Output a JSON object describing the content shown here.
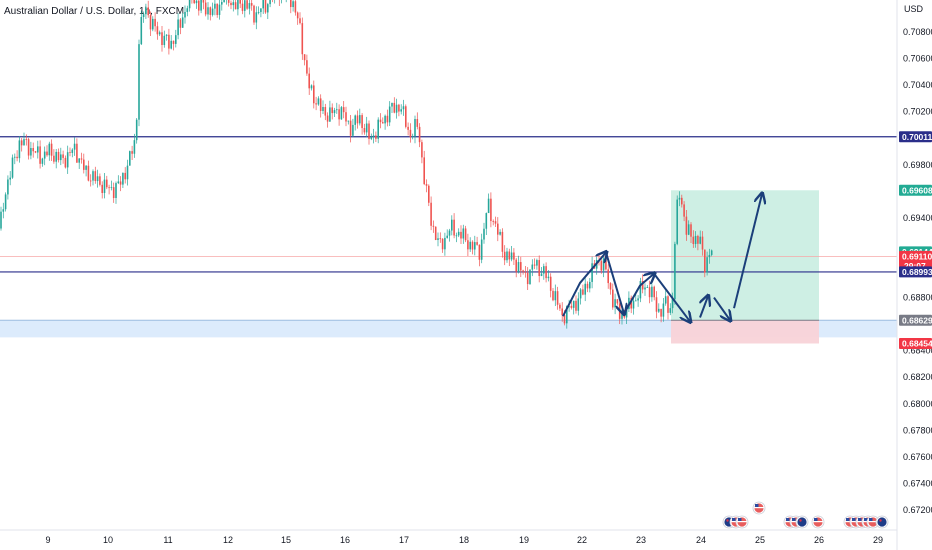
{
  "chart_data": {
    "type": "candlestick",
    "title": "Australian Dollar / U.S. Dollar, 1h, FXCM",
    "currency_label": "USD",
    "colors": {
      "up": "#26a69a",
      "down": "#ef5350",
      "hline": "#2a2e8a",
      "zone_fill": "#d6e8fb",
      "target_fill": "#cbeee3",
      "stop_fill": "#f8d3d8",
      "arrow": "#1b3f7a",
      "price_green": "#22ab94",
      "price_red": "#f23645",
      "price_navy": "#2a2e8a",
      "price_gray": "#787b86"
    },
    "ylim": [
      0.6711,
      0.7108
    ],
    "y_ticks": [
      "0.70800",
      "0.70600",
      "0.70400",
      "0.70200",
      "0.69800",
      "0.69400",
      "0.68800",
      "0.68400",
      "0.68200",
      "0.68000",
      "0.67800",
      "0.67600",
      "0.67400",
      "0.67200"
    ],
    "x_ticks": [
      "9",
      "10",
      "11",
      "12",
      "15",
      "16",
      "17",
      "18",
      "19",
      "22",
      "23",
      "24",
      "25",
      "26",
      "29"
    ],
    "horizontal_lines": [
      0.7106,
      0.70011,
      0.68993
    ],
    "support_zone": [
      0.685,
      0.68629
    ],
    "last_price_line": 0.6911,
    "position": {
      "entry": 0.68629,
      "target": 0.69608,
      "stop": 0.68454
    },
    "price_labels": [
      {
        "text": "0.70011",
        "value": 0.70011,
        "color": "price_navy"
      },
      {
        "text": "0.69608",
        "value": 0.69608,
        "color": "price_green"
      },
      {
        "text": "0.69144",
        "value": 0.69144,
        "color": "price_green"
      },
      {
        "text": "0.69110",
        "value": 0.6911,
        "color": "price_red",
        "sub": "29:07"
      },
      {
        "text": "0.68993",
        "value": 0.68993,
        "color": "price_navy"
      },
      {
        "text": "0.68629",
        "value": 0.68629,
        "color": "price_gray"
      },
      {
        "text": "0.68454",
        "value": 0.68454,
        "color": "price_red"
      }
    ],
    "path_points": [
      [
        0,
        0.6932
      ],
      [
        6,
        0.6963
      ],
      [
        12,
        0.6978
      ],
      [
        20,
        0.6998
      ],
      [
        28,
        0.6994
      ],
      [
        40,
        0.6986
      ],
      [
        50,
        0.699
      ],
      [
        62,
        0.6983
      ],
      [
        75,
        0.6992
      ],
      [
        85,
        0.6975
      ],
      [
        97,
        0.6968
      ],
      [
        110,
        0.6961
      ],
      [
        120,
        0.6965
      ],
      [
        130,
        0.6985
      ],
      [
        136,
        0.7
      ],
      [
        139,
        0.7075
      ],
      [
        145,
        0.71
      ],
      [
        152,
        0.7085
      ],
      [
        160,
        0.7078
      ],
      [
        170,
        0.707
      ],
      [
        180,
        0.7085
      ],
      [
        190,
        0.7108
      ],
      [
        200,
        0.71
      ],
      [
        215,
        0.7095
      ],
      [
        225,
        0.7108
      ],
      [
        235,
        0.71
      ],
      [
        245,
        0.7102
      ],
      [
        255,
        0.7093
      ],
      [
        265,
        0.71
      ],
      [
        275,
        0.711
      ],
      [
        290,
        0.7108
      ],
      [
        300,
        0.7083
      ],
      [
        308,
        0.704
      ],
      [
        315,
        0.703
      ],
      [
        322,
        0.702
      ],
      [
        330,
        0.7018
      ],
      [
        340,
        0.7022
      ],
      [
        350,
        0.7008
      ],
      [
        360,
        0.7015
      ],
      [
        370,
        0.6999
      ],
      [
        380,
        0.701
      ],
      [
        390,
        0.7021
      ],
      [
        400,
        0.7025
      ],
      [
        410,
        0.7002
      ],
      [
        418,
        0.701
      ],
      [
        425,
        0.6965
      ],
      [
        432,
        0.6935
      ],
      [
        440,
        0.6918
      ],
      [
        450,
        0.6932
      ],
      [
        460,
        0.6928
      ],
      [
        470,
        0.692
      ],
      [
        480,
        0.6915
      ],
      [
        488,
        0.695
      ],
      [
        495,
        0.6935
      ],
      [
        505,
        0.6912
      ],
      [
        515,
        0.6908
      ],
      [
        525,
        0.6895
      ],
      [
        535,
        0.6905
      ],
      [
        545,
        0.6898
      ],
      [
        555,
        0.688
      ],
      [
        562,
        0.6866
      ],
      [
        570,
        0.6872
      ],
      [
        580,
        0.688
      ],
      [
        590,
        0.6895
      ],
      [
        598,
        0.691
      ],
      [
        606,
        0.69
      ],
      [
        612,
        0.688
      ],
      [
        620,
        0.6867
      ],
      [
        628,
        0.6872
      ],
      [
        636,
        0.688
      ],
      [
        645,
        0.689
      ],
      [
        652,
        0.6882
      ],
      [
        660,
        0.6868
      ],
      [
        666,
        0.6876
      ],
      [
        672,
        0.687
      ],
      [
        676,
        0.694
      ],
      [
        680,
        0.6962
      ],
      [
        686,
        0.693
      ],
      [
        694,
        0.6925
      ],
      [
        700,
        0.6922
      ],
      [
        705,
        0.6905
      ],
      [
        710,
        0.6914
      ]
    ],
    "arrows": [
      {
        "pts": [
          [
            563,
            0.6866
          ],
          [
            580,
            0.6891
          ],
          [
            606,
            0.6914
          ]
        ]
      },
      {
        "pts": [
          [
            606,
            0.6914
          ],
          [
            624,
            0.6868
          ]
        ]
      },
      {
        "pts": [
          [
            624,
            0.6868
          ],
          [
            640,
            0.6889
          ],
          [
            654,
            0.6898
          ]
        ]
      },
      {
        "pts": [
          [
            654,
            0.6898
          ],
          [
            690,
            0.6862
          ]
        ]
      },
      {
        "pts": [
          [
            700,
            0.6865
          ],
          [
            708,
            0.6881
          ]
        ]
      },
      {
        "pts": [
          [
            714,
            0.688
          ],
          [
            730,
            0.6863
          ]
        ]
      },
      {
        "pts": [
          [
            734,
            0.6872
          ],
          [
            762,
            0.6958
          ]
        ]
      }
    ],
    "event_icons": [
      "au",
      "us",
      "us",
      "us",
      "us",
      "us",
      "au",
      "us",
      "us",
      "us",
      "us",
      "us",
      "us",
      "au"
    ]
  }
}
